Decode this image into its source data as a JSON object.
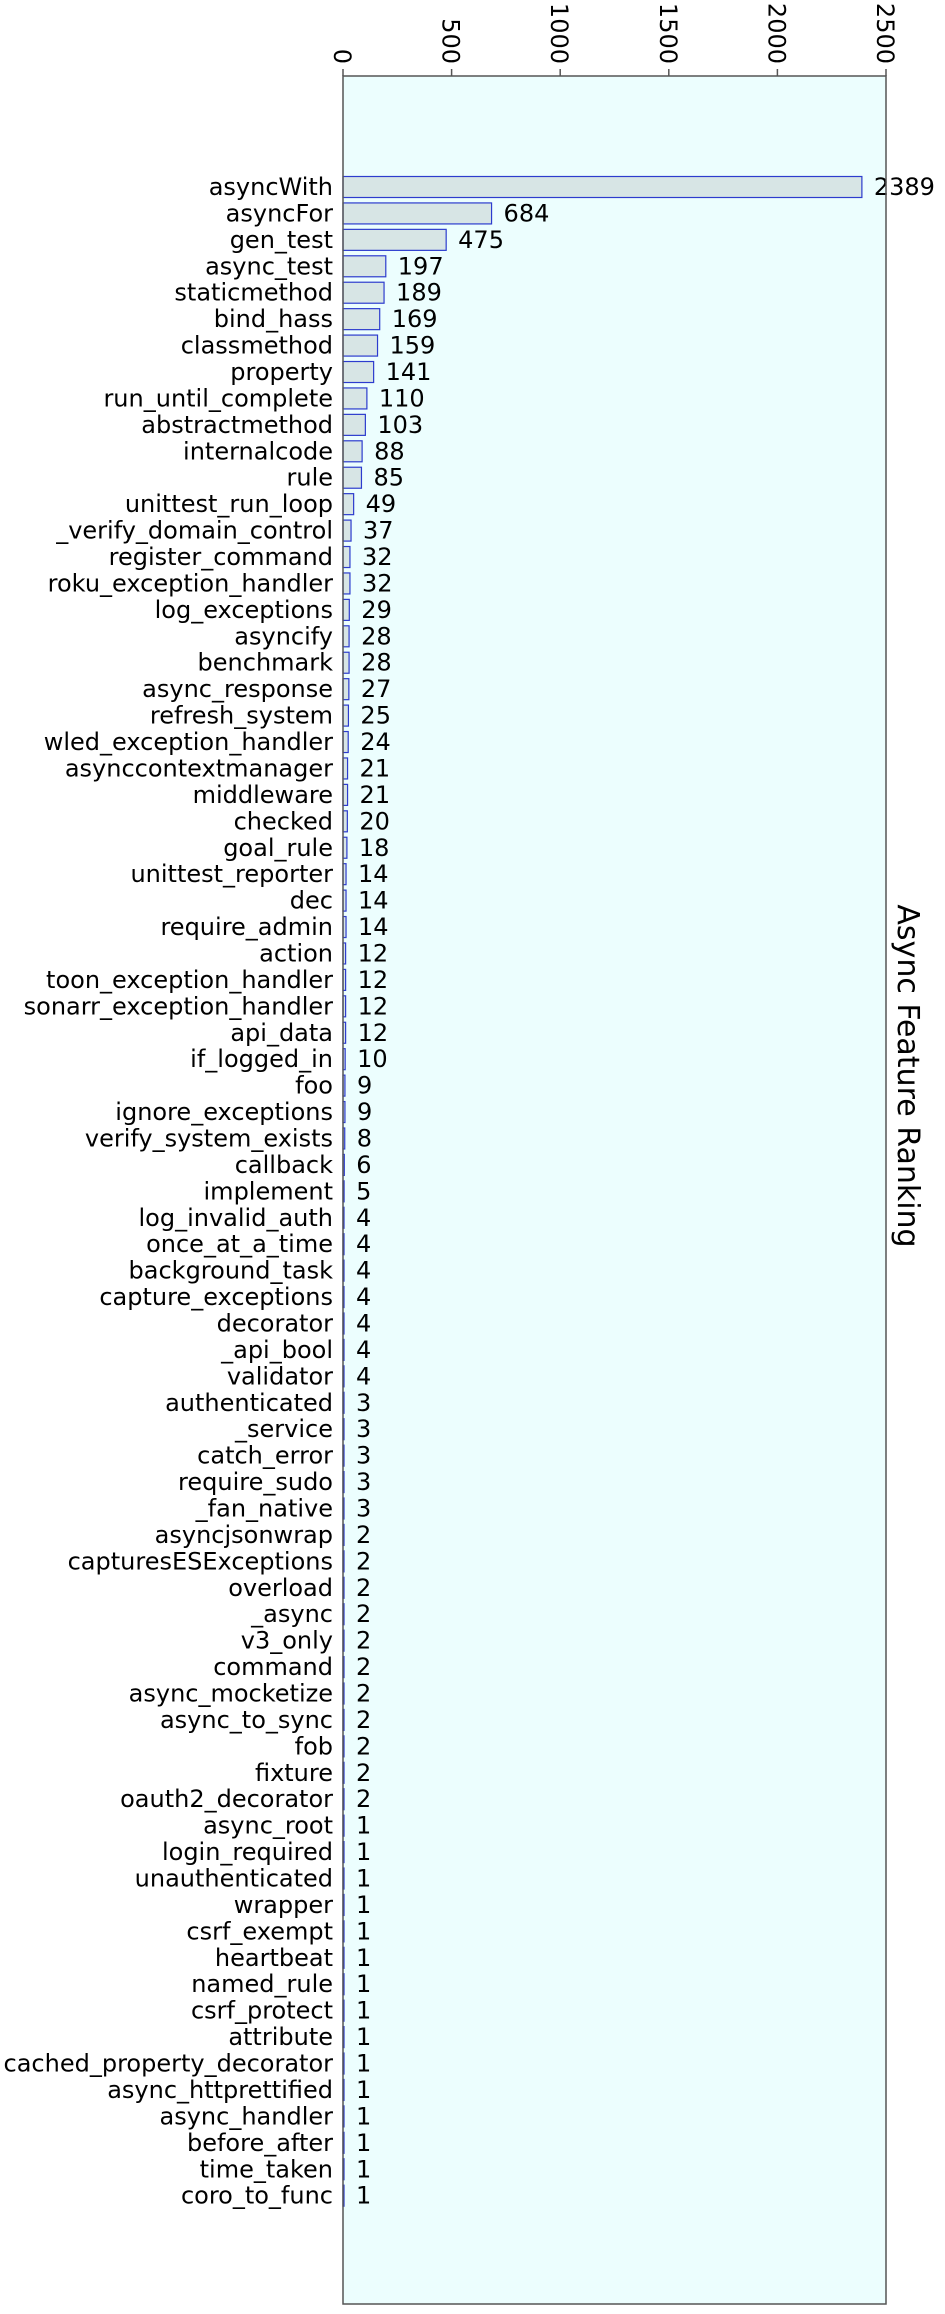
{
  "chart_data": {
    "type": "bar",
    "orientation": "horizontal",
    "title": "",
    "xlabel": "",
    "ylabel": "Async Feature Ranking",
    "xlim": [
      0,
      2500
    ],
    "ticks": [
      0,
      500,
      1000,
      1500,
      2000,
      2500
    ],
    "grid": false,
    "colors": {
      "background": "#ecfefe",
      "bar_fill": "#d7e5e5",
      "bar_edge": "#2d3cce",
      "frame": "#555555",
      "text": "#000000"
    },
    "categories": [
      "asyncWith",
      "asyncFor",
      "gen_test",
      "async_test",
      "staticmethod",
      "bind_hass",
      "classmethod",
      "property",
      "run_until_complete",
      "abstractmethod",
      "internalcode",
      "rule",
      "unittest_run_loop",
      "_verify_domain_control",
      "register_command",
      "roku_exception_handler",
      "log_exceptions",
      "asyncify",
      "benchmark",
      "async_response",
      "refresh_system",
      "wled_exception_handler",
      "asynccontextmanager",
      "middleware",
      "checked",
      "goal_rule",
      "unittest_reporter",
      "dec",
      "require_admin",
      "action",
      "toon_exception_handler",
      "sonarr_exception_handler",
      "api_data",
      "if_logged_in",
      "foo",
      "ignore_exceptions",
      "verify_system_exists",
      "callback",
      "implement",
      "log_invalid_auth",
      "once_at_a_time",
      "background_task",
      "capture_exceptions",
      "decorator",
      "_api_bool",
      "validator",
      "authenticated",
      "_service",
      "catch_error",
      "require_sudo",
      "_fan_native",
      "asyncjsonwrap",
      "capturesESExceptions",
      "overload",
      "_async",
      "v3_only",
      "command",
      "async_mocketize",
      "async_to_sync",
      "fob",
      "fixture",
      "oauth2_decorator",
      "async_root",
      "login_required",
      "unauthenticated",
      "wrapper",
      "csrf_exempt",
      "heartbeat",
      "named_rule",
      "csrf_protect",
      "attribute",
      "cached_property_decorator",
      "async_httprettified",
      "async_handler",
      "before_after",
      "time_taken",
      "coro_to_func"
    ],
    "values": [
      2389,
      684,
      475,
      197,
      189,
      169,
      159,
      141,
      110,
      103,
      88,
      85,
      49,
      37,
      32,
      32,
      29,
      28,
      28,
      27,
      25,
      24,
      21,
      21,
      20,
      18,
      14,
      14,
      14,
      12,
      12,
      12,
      12,
      10,
      9,
      9,
      8,
      6,
      5,
      4,
      4,
      4,
      4,
      4,
      4,
      4,
      3,
      3,
      3,
      3,
      3,
      2,
      2,
      2,
      2,
      2,
      2,
      2,
      2,
      2,
      2,
      2,
      1,
      1,
      1,
      1,
      1,
      1,
      1,
      1,
      1,
      1,
      1,
      1,
      1,
      1,
      1
    ]
  }
}
